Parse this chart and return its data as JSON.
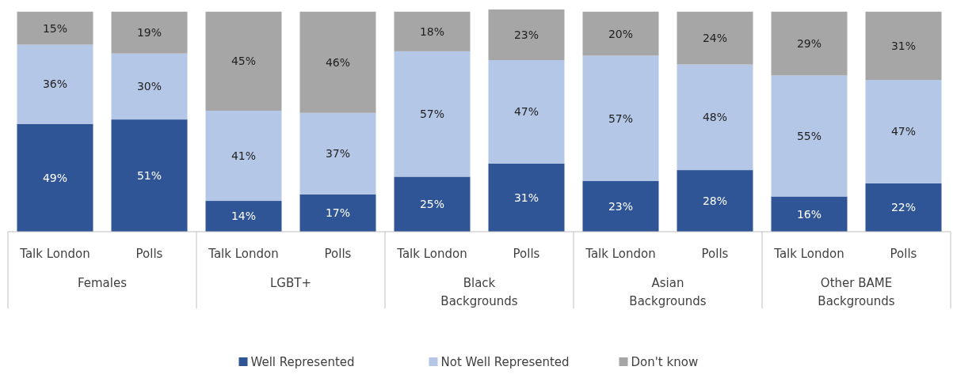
{
  "chart_data": {
    "type": "bar",
    "stacked": true,
    "legend": "bottom",
    "ylim": [
      0,
      101
    ],
    "categories": [
      "Talk London",
      "Polls",
      "Talk London",
      "Polls",
      "Talk London",
      "Polls",
      "Talk London",
      "Polls",
      "Talk London",
      "Polls"
    ],
    "annotations": [
      "Females",
      "LGBT+",
      "Black Backgrounds",
      "Asian Backgrounds",
      "Other BAME Backgrounds"
    ],
    "series": [
      {
        "name": "Well Represented",
        "color": "#2f5597",
        "values": [
          49,
          51,
          14,
          17,
          25,
          31,
          23,
          28,
          16,
          22
        ],
        "value_labels": [
          "49%",
          "51%",
          "14%",
          "17%",
          "25%",
          "31%",
          "23%",
          "28%",
          "16%",
          "22%"
        ]
      },
      {
        "name": "Not Well Represented",
        "color": "#b4c7e7",
        "values": [
          36,
          30,
          41,
          37,
          57,
          47,
          57,
          48,
          55,
          47
        ],
        "value_labels": [
          "36%",
          "30%",
          "41%",
          "37%",
          "57%",
          "47%",
          "57%",
          "48%",
          "55%",
          "47%"
        ]
      },
      {
        "name": "Don't know",
        "color": "#a6a6a6",
        "values": [
          15,
          19,
          45,
          46,
          18,
          23,
          20,
          24,
          29,
          31
        ],
        "value_labels": [
          "15%",
          "19%",
          "45%",
          "46%",
          "18%",
          "23%",
          "20%",
          "24%",
          "29%",
          "31%"
        ]
      }
    ]
  }
}
